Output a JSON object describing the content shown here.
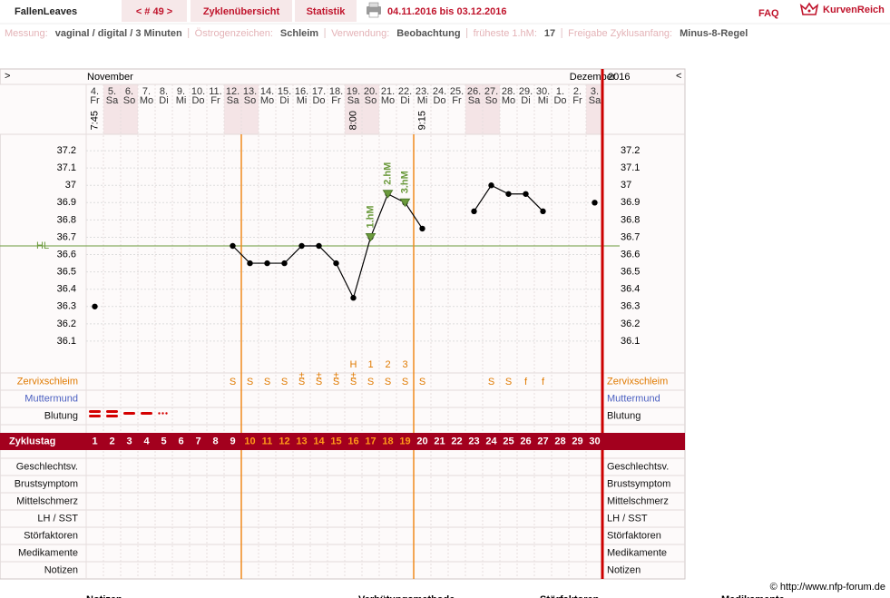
{
  "header": {
    "user": "FallenLeaves",
    "cycle": "< # 49 >",
    "tabs": [
      "Zyklenübersicht",
      "Statistik"
    ],
    "period": "04.11.2016 bis 03.12.2016",
    "faq": "FAQ",
    "brand": "KurvenReich"
  },
  "info": [
    {
      "label": "Messung:",
      "value": "vaginal / digital / 3 Minuten"
    },
    {
      "label": "Östrogenzeichen:",
      "value": "Schleim"
    },
    {
      "label": "Verwendung:",
      "value": "Beobachtung"
    },
    {
      "label": "früheste 1.hM:",
      "value": "17"
    },
    {
      "label": "Freigabe Zyklusanfang:",
      "value": "Minus-8-Regel"
    }
  ],
  "chart_data": {
    "type": "line",
    "color": "#000000",
    "x": [
      1,
      2,
      3,
      4,
      5,
      6,
      7,
      8,
      9,
      10,
      11,
      12,
      13,
      14,
      15,
      16,
      17,
      18,
      19,
      20,
      21,
      22,
      23,
      24,
      25,
      26,
      27,
      28,
      29,
      30
    ],
    "values": [
      36.3,
      null,
      null,
      null,
      null,
      null,
      null,
      null,
      36.65,
      36.55,
      36.55,
      36.55,
      36.65,
      36.65,
      36.55,
      36.35,
      36.7,
      36.95,
      36.9,
      36.75,
      null,
      null,
      36.85,
      37,
      36.95,
      36.95,
      36.85,
      null,
      null,
      36.9
    ],
    "ylim": [
      36,
      37.3
    ],
    "yticks": [
      36.1,
      36.2,
      36.3,
      36.4,
      36.5,
      36.6,
      36.7,
      36.8,
      36.9,
      37,
      37.1,
      37.2
    ],
    "grid": true,
    "nav_left": ">",
    "nav_right": "<",
    "year": "2016",
    "months": [
      {
        "day": 1,
        "label": "November"
      },
      {
        "day": 28,
        "label": "Dezember"
      }
    ],
    "dates": [
      "4.",
      "5.",
      "6.",
      "7.",
      "8.",
      "9.",
      "10.",
      "11.",
      "12.",
      "13.",
      "14.",
      "15.",
      "16.",
      "17.",
      "18.",
      "19.",
      "20.",
      "21.",
      "22.",
      "23.",
      "24.",
      "25.",
      "26.",
      "27.",
      "28.",
      "29.",
      "30.",
      "1.",
      "2.",
      "3."
    ],
    "weekdays": [
      "Fr",
      "Sa",
      "So",
      "Mo",
      "Di",
      "Mi",
      "Do",
      "Fr",
      "Sa",
      "So",
      "Mo",
      "Di",
      "Mi",
      "Do",
      "Fr",
      "Sa",
      "So",
      "Mo",
      "Di",
      "Mi",
      "Do",
      "Fr",
      "Sa",
      "So",
      "Mo",
      "Di",
      "Mi",
      "Do",
      "Fr",
      "Sa"
    ],
    "shaded_days": [
      2,
      3,
      9,
      10,
      16,
      17,
      23,
      24,
      30
    ],
    "times": [
      {
        "day": 1,
        "label": "7:45"
      },
      {
        "day": 16,
        "label": "8:00"
      },
      {
        "day": 20,
        "label": "9:15"
      }
    ],
    "coverline": {
      "label": "HL",
      "value": 36.65,
      "color": "#6b9a3c"
    },
    "hm_markers": [
      {
        "day": 17,
        "label": "1.hM"
      },
      {
        "day": 18,
        "label": "2.hM"
      },
      {
        "day": 19,
        "label": "3.hM"
      }
    ],
    "count_row": [
      {
        "day": 16,
        "label": "H"
      },
      {
        "day": 17,
        "label": "1"
      },
      {
        "day": 18,
        "label": "2"
      },
      {
        "day": 19,
        "label": "3"
      }
    ],
    "mucus": [
      null,
      null,
      null,
      null,
      null,
      null,
      null,
      null,
      "S",
      "S",
      "S",
      "S",
      "S",
      "S",
      "S",
      "S",
      "S",
      "S",
      "S",
      "S",
      null,
      null,
      null,
      "S",
      "S",
      "f",
      "f",
      null,
      null,
      null
    ],
    "mucus_extra": [
      {
        "day": 13,
        "label": "±"
      },
      {
        "day": 14,
        "label": "±"
      },
      {
        "day": 15,
        "label": "±"
      },
      {
        "day": 16,
        "label": "±"
      }
    ],
    "highlight_days": [
      10,
      19
    ],
    "rows": [
      "Zervixschleim",
      "Muttermund",
      "Blutung",
      "Zyklustag",
      "Geschlechtsv.",
      "Brustsymptom",
      "Mittelschmerz",
      "LH / SST",
      "Störfaktoren",
      "Medikamente",
      "Notizen"
    ]
  },
  "footer": {
    "copyright": "© http://www.nfp-forum.de",
    "sections": [
      "Notizen",
      "Verhütungsmethode",
      "Störfaktoren",
      "Medikamente"
    ]
  }
}
